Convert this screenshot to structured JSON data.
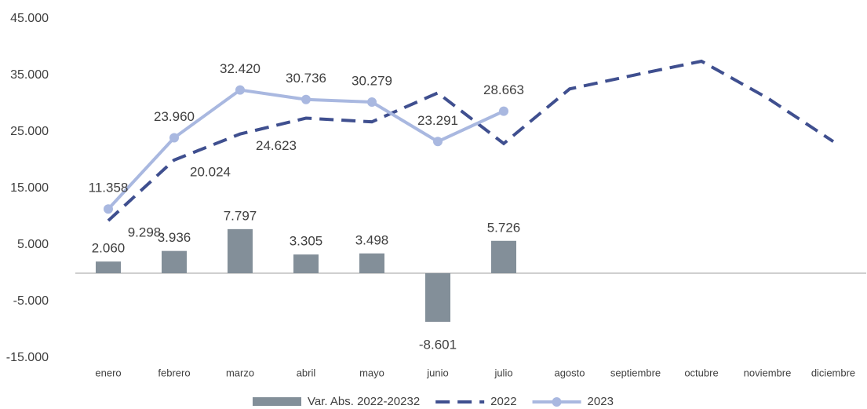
{
  "chart_data": {
    "type": "bar-line",
    "categories": [
      "enero",
      "febrero",
      "marzo",
      "abril",
      "mayo",
      "junio",
      "julio",
      "agosto",
      "septiembre",
      "octubre",
      "noviembre",
      "diciembre"
    ],
    "ylim": [
      -15000,
      45000
    ],
    "yticks": [
      {
        "value": -15000,
        "label": "-15.000"
      },
      {
        "value": -5000,
        "label": "-5.000"
      },
      {
        "value": 5000,
        "label": "5.000"
      },
      {
        "value": 15000,
        "label": "15.000"
      },
      {
        "value": 25000,
        "label": "25.000"
      },
      {
        "value": 35000,
        "label": "35.000"
      },
      {
        "value": 45000,
        "label": "45.000"
      }
    ],
    "grid": false,
    "legend": "bottom",
    "series": [
      {
        "name": "Var. Abs. 2022-20232",
        "type": "bar",
        "color": "#838f99",
        "values": [
          2060,
          3936,
          7797,
          3305,
          3498,
          -8601,
          5726,
          null,
          null,
          null,
          null,
          null
        ],
        "value_labels": [
          "2.060",
          "3.936",
          "7.797",
          "3.305",
          "3.498",
          "-8.601",
          "5.726",
          null,
          null,
          null,
          null,
          null
        ]
      },
      {
        "name": "2022",
        "type": "line",
        "style": "dashed",
        "color": "#3f4f8f",
        "values": [
          9298,
          20024,
          24623,
          27431,
          26781,
          31892,
          22937,
          32600,
          35100,
          37500,
          31000,
          23300
        ],
        "value_labels": [
          "9.298",
          "20.024",
          "24.623",
          null,
          null,
          null,
          null,
          null,
          null,
          null,
          null,
          null
        ]
      },
      {
        "name": "2023",
        "type": "line",
        "markers": true,
        "color": "#a9b8e0",
        "values": [
          11358,
          23960,
          32420,
          30736,
          30279,
          23291,
          28663,
          null,
          null,
          null,
          null,
          null
        ],
        "value_labels": [
          "11.358",
          "23.960",
          "32.420",
          "30.736",
          "30.279",
          "23.291",
          "28.663",
          null,
          null,
          null,
          null,
          null
        ]
      }
    ]
  }
}
